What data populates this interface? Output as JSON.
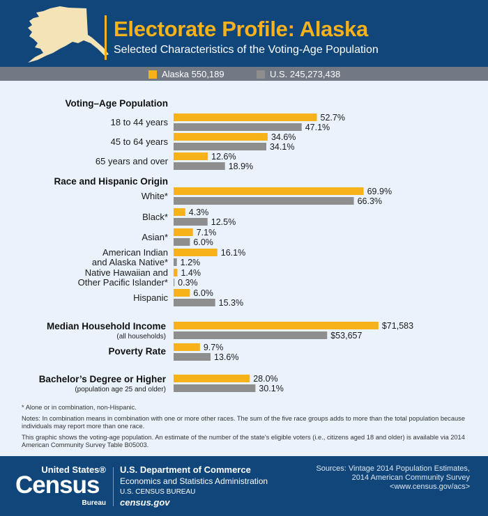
{
  "header": {
    "title": "Electorate Profile: Alaska",
    "subtitle": "Selected Characteristics of the Voting-Age Population"
  },
  "legend": {
    "alaska": "Alaska 550,189",
    "us": "U.S. 245,273,438"
  },
  "colors": {
    "alaska": "#f7b21a",
    "us": "#8e8e8e",
    "header_bg": "#11467a",
    "legend_bg": "#707984",
    "body_bg": "#eaf3fb"
  },
  "chart_data": {
    "type": "bar",
    "orientation": "horizontal",
    "series_names": [
      "Alaska 550,189",
      "U.S. 245,273,438"
    ],
    "percent_scale_max": 100,
    "sections": [
      {
        "title": "Voting–Age Population",
        "rows": [
          {
            "label": "18 to 44 years",
            "alaska": 52.7,
            "us": 47.1,
            "alaska_label": "52.7%",
            "us_label": "47.1%"
          },
          {
            "label": "45 to 64 years",
            "alaska": 34.6,
            "us": 34.1,
            "alaska_label": "34.6%",
            "us_label": "34.1%"
          },
          {
            "label": "65 years and over",
            "alaska": 12.6,
            "us": 18.9,
            "alaska_label": "12.6%",
            "us_label": "18.9%"
          }
        ]
      },
      {
        "title": "Race and Hispanic Origin",
        "rows": [
          {
            "label": "White*",
            "alaska": 69.9,
            "us": 66.3,
            "alaska_label": "69.9%",
            "us_label": "66.3%"
          },
          {
            "label": "Black*",
            "alaska": 4.3,
            "us": 12.5,
            "alaska_label": "4.3%",
            "us_label": "12.5%"
          },
          {
            "label": "Asian*",
            "alaska": 7.1,
            "us": 6.0,
            "alaska_label": "7.1%",
            "us_label": "6.0%"
          },
          {
            "label_line1": "American Indian",
            "label_line2": "and Alaska Native*",
            "alaska": 16.1,
            "us": 1.2,
            "alaska_label": "16.1%",
            "us_label": "1.2%"
          },
          {
            "label_line1": "Native Hawaiian and",
            "label_line2": "Other Pacific Islander*",
            "alaska": 1.4,
            "us": 0.3,
            "alaska_label": "1.4%",
            "us_label": "0.3%"
          },
          {
            "label": "Hispanic",
            "alaska": 6.0,
            "us": 15.3,
            "alaska_label": "6.0%",
            "us_label": "15.3%"
          }
        ]
      },
      {
        "title": "Median Household Income",
        "subtitle": "(all households)",
        "currency_scale_max": 95000,
        "rows": [
          {
            "alaska": 71583,
            "us": 53657,
            "alaska_label": "$71,583",
            "us_label": "$53,657"
          }
        ]
      },
      {
        "title": "Poverty Rate",
        "rows": [
          {
            "alaska": 9.7,
            "us": 13.6,
            "alaska_label": "9.7%",
            "us_label": "13.6%"
          }
        ]
      },
      {
        "title": "Bachelor’s Degree or Higher",
        "subtitle": "(population age 25 and older)",
        "rows": [
          {
            "alaska": 28.0,
            "us": 30.1,
            "alaska_label": "28.0%",
            "us_label": "30.1%"
          }
        ]
      }
    ]
  },
  "notes": {
    "asterisk": "* Alone or in combination, non-Hispanic.",
    "note1": "Notes: In combination means in combination with one or more other races. The sum of the five race groups adds to more than the total population because individuals may report more than one race.",
    "note2": "This graphic shows the voting-age population. An estimate of the number of the state's eligible voters (i.e., citizens aged 18 and older) is available via 2014 American Community Survey Table B05003."
  },
  "footer": {
    "logo_top": "United States®",
    "logo_main": "Census",
    "logo_bottom": "Bureau",
    "dept_line1": "U.S. Department of Commerce",
    "dept_line2": "Economics and Statistics Administration",
    "dept_line3": "U.S. CENSUS BUREAU",
    "dept_line4": "census.gov",
    "sources_line1": "Sources: Vintage 2014 Population Estimates,",
    "sources_line2": "2014 American Community Survey",
    "sources_line3": "<www.census.gov/acs>"
  }
}
